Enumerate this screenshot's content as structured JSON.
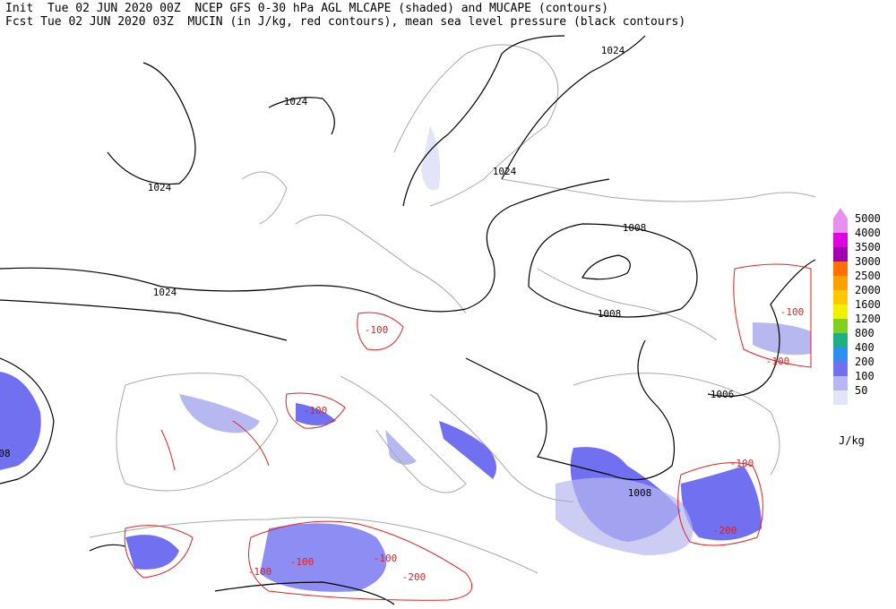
{
  "header": {
    "line1": "Init  Tue 02 JUN 2020 00Z  NCEP GFS 0-30 hPa AGL MLCAPE (shaded) and MUCAPE (contours)",
    "line2": "Fcst Tue 02 JUN 2020 03Z  MUCIN (in J/kg, red contours), mean sea level pressure (black contours)"
  },
  "legend": {
    "levels": [
      5000,
      4000,
      3500,
      3000,
      2500,
      2000,
      1600,
      1200,
      800,
      400,
      200,
      100,
      50
    ],
    "colors": [
      "#e890f0",
      "#e000e0",
      "#a000b0",
      "#ff7000",
      "#ffa000",
      "#ffc800",
      "#f0f000",
      "#80d020",
      "#20b080",
      "#3090f0",
      "#7070f0",
      "#b8b8f0",
      "#e4e4f8"
    ],
    "unit": "J/kg"
  },
  "contour_labels": {
    "pressure": [
      "1024",
      "1024",
      "1024",
      "1024",
      "1024",
      "1008",
      "1008",
      "1006",
      "1008",
      "08"
    ],
    "mucin": [
      "-100",
      "-100",
      "-100",
      "-100",
      "-100",
      "-200",
      "-100",
      "-100",
      "-200",
      "-100"
    ]
  }
}
